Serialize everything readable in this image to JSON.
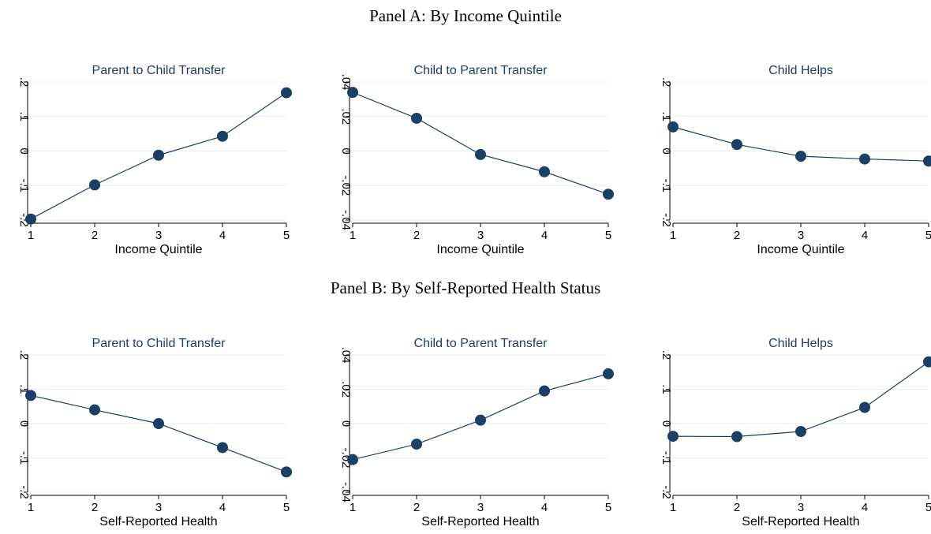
{
  "panels": [
    {
      "title": "Panel A: By Income Quintile",
      "charts": [
        {
          "type": "line",
          "title": "Parent to Child Transfer",
          "xlabel": "Income Quintile",
          "x": [
            1,
            2,
            3,
            4,
            5
          ],
          "y": [
            -0.197,
            -0.098,
            -0.012,
            0.043,
            0.169
          ],
          "ylim": [
            -0.2,
            0.2
          ],
          "yticks": [
            "-.2",
            "-.1",
            "0",
            ".1",
            ".2"
          ],
          "ytick_values": [
            -0.2,
            -0.1,
            0,
            0.1,
            0.2
          ],
          "xticks": [
            "1",
            "2",
            "3",
            "4",
            "5"
          ]
        },
        {
          "type": "line",
          "title": "Child to Parent Transfer",
          "xlabel": "Income Quintile",
          "x": [
            1,
            2,
            3,
            4,
            5
          ],
          "y": [
            0.034,
            0.019,
            -0.002,
            -0.012,
            -0.025
          ],
          "ylim": [
            -0.04,
            0.04
          ],
          "yticks": [
            "-.04",
            "-.02",
            "0",
            ".02",
            ".04"
          ],
          "ytick_values": [
            -0.04,
            -0.02,
            0,
            0.02,
            0.04
          ],
          "xticks": [
            "1",
            "2",
            "3",
            "4",
            "5"
          ]
        },
        {
          "type": "line",
          "title": "Child Helps",
          "xlabel": "Income Quintile",
          "x": [
            1,
            2,
            3,
            4,
            5
          ],
          "y": [
            0.07,
            0.019,
            -0.015,
            -0.023,
            -0.029
          ],
          "ylim": [
            -0.2,
            0.2
          ],
          "yticks": [
            "-.2",
            "-.1",
            "0",
            ".1",
            ".2"
          ],
          "ytick_values": [
            -0.2,
            -0.1,
            0,
            0.1,
            0.2
          ],
          "xticks": [
            "1",
            "2",
            "3",
            "4",
            "5"
          ]
        }
      ]
    },
    {
      "title": "Panel B: By Self-Reported Health Status",
      "charts": [
        {
          "type": "line",
          "title": "Parent to Child Transfer",
          "xlabel": "Self-Reported Health",
          "x": [
            1,
            2,
            3,
            4,
            5
          ],
          "y": [
            0.082,
            0.04,
            0.0,
            -0.07,
            -0.141
          ],
          "ylim": [
            -0.2,
            0.2
          ],
          "yticks": [
            "-.2",
            "-.1",
            "0",
            ".1",
            ".2"
          ],
          "ytick_values": [
            -0.2,
            -0.1,
            0,
            0.1,
            0.2
          ],
          "xticks": [
            "1",
            "2",
            "3",
            "4",
            "5"
          ]
        },
        {
          "type": "line",
          "title": "Child to Parent Transfer",
          "xlabel": "Self-Reported Health",
          "x": [
            1,
            2,
            3,
            4,
            5
          ],
          "y": [
            -0.021,
            -0.012,
            0.002,
            0.019,
            0.029
          ],
          "ylim": [
            -0.04,
            0.04
          ],
          "yticks": [
            "-.04",
            "-.02",
            "0",
            ".02",
            ".04"
          ],
          "ytick_values": [
            -0.04,
            -0.02,
            0,
            0.02,
            0.04
          ],
          "xticks": [
            "1",
            "2",
            "3",
            "4",
            "5"
          ]
        },
        {
          "type": "line",
          "title": "Child Helps",
          "xlabel": "Self-Reported Health",
          "x": [
            1,
            2,
            3,
            4,
            5
          ],
          "y": [
            -0.037,
            -0.038,
            -0.023,
            0.047,
            0.18
          ],
          "ylim": [
            -0.2,
            0.2
          ],
          "yticks": [
            "-.2",
            "-.1",
            "0",
            ".1",
            ".2"
          ],
          "ytick_values": [
            -0.2,
            -0.1,
            0,
            0.1,
            0.2
          ],
          "xticks": [
            "1",
            "2",
            "3",
            "4",
            "5"
          ]
        }
      ]
    }
  ],
  "style": {
    "marker_color": "#1c3f66",
    "line_color": "#1c3f66",
    "grid_color": "#e8eef2",
    "title_color": "#1f3b68"
  }
}
